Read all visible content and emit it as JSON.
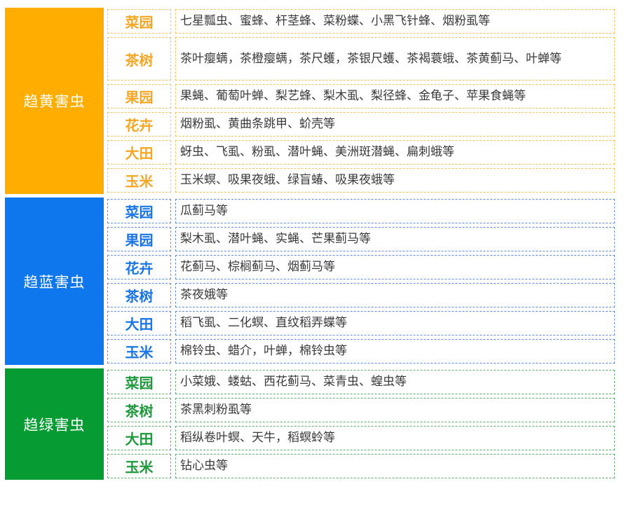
{
  "colors": {
    "yellow": "#FFAD00",
    "blue": "#0F77EE",
    "green": "#079C33",
    "yellow_text": "#F5A623",
    "blue_text": "#1876E8",
    "green_text": "#1E9A3C",
    "yellow_border": "#F7C25A",
    "blue_border": "#5E8FD8",
    "green_border": "#5FAE6E"
  },
  "groups": [
    {
      "title": "趋黄害虫",
      "color": "yellow",
      "rows": [
        {
          "crop": "菜园",
          "pests": "七星瓢虫、蜜蜂、杆茎蜂、菜粉蝶、小黑飞针蜂、烟粉虱等"
        },
        {
          "crop": "茶树",
          "pests": "茶叶瘿螨，茶橙瘿螨，茶尺蠖，茶银尺蠖、茶褐蓑蛾、茶黄蓟马、叶蝉等"
        },
        {
          "crop": "果园",
          "pests": "果蝇、葡萄叶蝉、梨艺蜂、梨木虱、梨径蜂、金龟子、苹果食蝇等"
        },
        {
          "crop": "花卉",
          "pests": "烟粉虱、黄曲条跳甲、蚧壳等"
        },
        {
          "crop": "大田",
          "pests": "蚜虫、飞虱、粉虱、潜叶蝇、美洲斑潜蝇、扁刺蛾等"
        },
        {
          "crop": "玉米",
          "pests": "玉米螟、吸果夜蛾、绿盲蝽、吸果夜蛾等"
        }
      ]
    },
    {
      "title": "趋蓝害虫",
      "color": "blue",
      "rows": [
        {
          "crop": "菜园",
          "pests": "瓜蓟马等"
        },
        {
          "crop": "果园",
          "pests": "梨木虱、潜叶蝇、实蝇、芒果蓟马等"
        },
        {
          "crop": "花卉",
          "pests": "花蓟马、棕榈蓟马、烟蓟马等"
        },
        {
          "crop": "茶树",
          "pests": "茶夜娥等"
        },
        {
          "crop": "大田",
          "pests": "稻飞虱、二化螟、直纹稻弄蝶等"
        },
        {
          "crop": "玉米",
          "pests": "棉铃虫、蜡介，叶蝉，棉铃虫等"
        }
      ]
    },
    {
      "title": "趋绿害虫",
      "color": "green",
      "rows": [
        {
          "crop": "菜园",
          "pests": "小菜娥、蝼蛄、西花蓟马、菜青虫、蝗虫等"
        },
        {
          "crop": "茶树",
          "pests": "茶黑刺粉虱等"
        },
        {
          "crop": "大田",
          "pests": "稻纵卷叶螟、天牛，稻螟蛉等"
        },
        {
          "crop": "玉米",
          "pests": "钻心虫等"
        }
      ]
    }
  ]
}
